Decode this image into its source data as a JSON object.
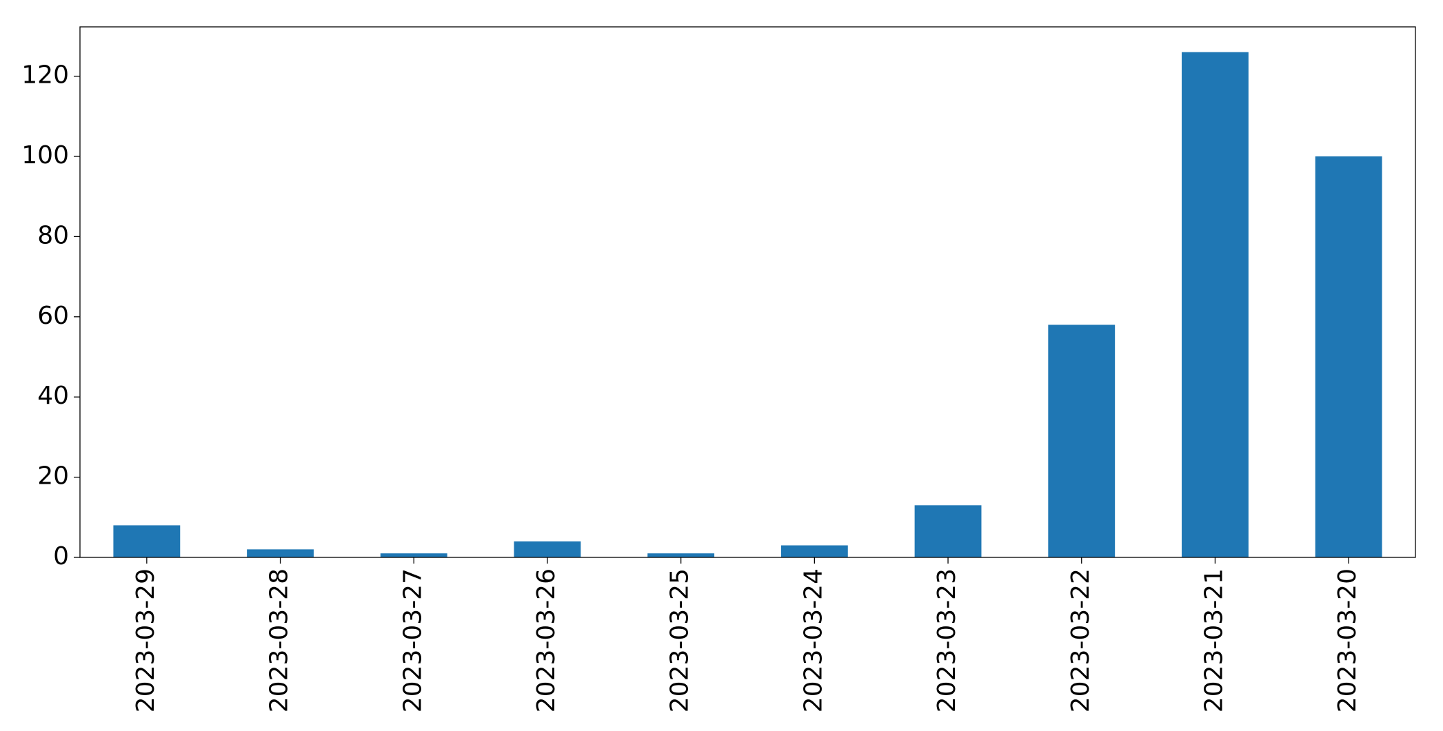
{
  "chart_data": {
    "type": "bar",
    "categories": [
      "2023-03-29",
      "2023-03-28",
      "2023-03-27",
      "2023-03-26",
      "2023-03-25",
      "2023-03-24",
      "2023-03-23",
      "2023-03-22",
      "2023-03-21",
      "2023-03-20"
    ],
    "values": [
      8,
      2,
      1,
      4,
      1,
      3,
      13,
      58,
      126,
      100
    ],
    "color": "#1f77b4",
    "ylim": [
      0,
      132.3
    ],
    "yticks": [
      0,
      20,
      40,
      60,
      80,
      100,
      120
    ],
    "grid": false
  }
}
